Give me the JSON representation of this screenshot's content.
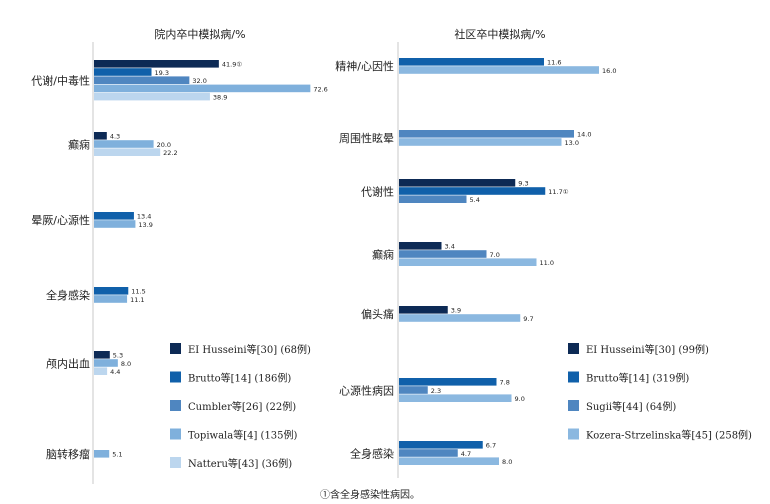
{
  "chart_data": [
    {
      "type": "bar",
      "orientation": "horizontal",
      "title": "院内卒中模拟病/%",
      "categories": [
        "代谢/中毒性",
        "癫痫",
        "晕厥/心源性",
        "全身感染",
        "颅内出血",
        "脑转移瘤"
      ],
      "series": [
        {
          "name": "EI Husseini等[30] (68例)",
          "color": "#0d2a55",
          "values": [
            41.9,
            4.3,
            null,
            null,
            5.3,
            null
          ]
        },
        {
          "name": "Brutto等[14] (186例)",
          "color": "#1060aa",
          "values": [
            19.3,
            null,
            13.4,
            11.5,
            null,
            null
          ]
        },
        {
          "name": "Cumbler等[26] (22例)",
          "color": "#4f86c0",
          "values": [
            32.0,
            null,
            null,
            null,
            null,
            null
          ]
        },
        {
          "name": "Topiwala等[4] (135例)",
          "color": "#7fb0dc",
          "values": [
            72.6,
            20.0,
            13.9,
            11.1,
            8.0,
            5.1
          ]
        },
        {
          "name": "Natteru等[43] (36例)",
          "color": "#bcd6ee",
          "values": [
            38.9,
            22.2,
            null,
            null,
            4.4,
            null
          ]
        }
      ],
      "value_labels": [
        [
          "41.9",
          "4.3",
          "",
          "",
          "5.3",
          ""
        ],
        [
          "19.3",
          "",
          "13.4",
          "11.5",
          "",
          ""
        ],
        [
          "32.0",
          "",
          "",
          "",
          "",
          ""
        ],
        [
          "72.6",
          "20.0",
          "13.9",
          "11.1",
          "8.0",
          "5.1"
        ],
        [
          "38.9",
          "22.2",
          "",
          "",
          "4.4",
          ""
        ]
      ],
      "annotations": [
        {
          "series": 0,
          "category": 0,
          "mark": "①"
        }
      ],
      "xlim": [
        0,
        75
      ],
      "legend": "bottom-right"
    },
    {
      "type": "bar",
      "orientation": "horizontal",
      "title": "社区卒中模拟病/%",
      "categories": [
        "精神/心因性",
        "周围性眩晕",
        "代谢性",
        "癫痫",
        "偏头痛",
        "心源性病因",
        "全身感染"
      ],
      "series": [
        {
          "name": "EI Husseini等[30] (99例)",
          "color": "#0d2a55",
          "values": [
            null,
            null,
            9.3,
            3.4,
            3.9,
            null,
            null
          ]
        },
        {
          "name": "Brutto等[14] (319例)",
          "color": "#1060aa",
          "values": [
            11.6,
            null,
            11.7,
            null,
            null,
            7.8,
            6.7
          ]
        },
        {
          "name": "Sugii等[44] (64例)",
          "color": "#4f86c0",
          "values": [
            null,
            14.0,
            5.4,
            7.0,
            null,
            2.3,
            4.7
          ]
        },
        {
          "name": "Kozera-Strzelinska等[45] (258例)",
          "color": "#8bb8e0",
          "values": [
            16.0,
            13.0,
            null,
            11.0,
            9.7,
            9.0,
            8.0
          ]
        }
      ],
      "value_labels": [
        [
          "",
          "",
          "9.3",
          "3.4",
          "3.9",
          "",
          ""
        ],
        [
          "11.6",
          "",
          "11.7",
          "",
          "",
          "7.8",
          "6.7"
        ],
        [
          "",
          "14.0",
          "5.4",
          "7.0",
          "",
          "2.3",
          "4.7"
        ],
        [
          "16.0",
          "13.0",
          "",
          "11.0",
          "9.7",
          "9.0",
          "8.0"
        ]
      ],
      "annotations": [
        {
          "series": 1,
          "category": 2,
          "mark": "①"
        }
      ],
      "xlim": [
        0,
        16
      ],
      "legend": "bottom-right"
    }
  ],
  "footnote": "①含全身感染性病因。"
}
